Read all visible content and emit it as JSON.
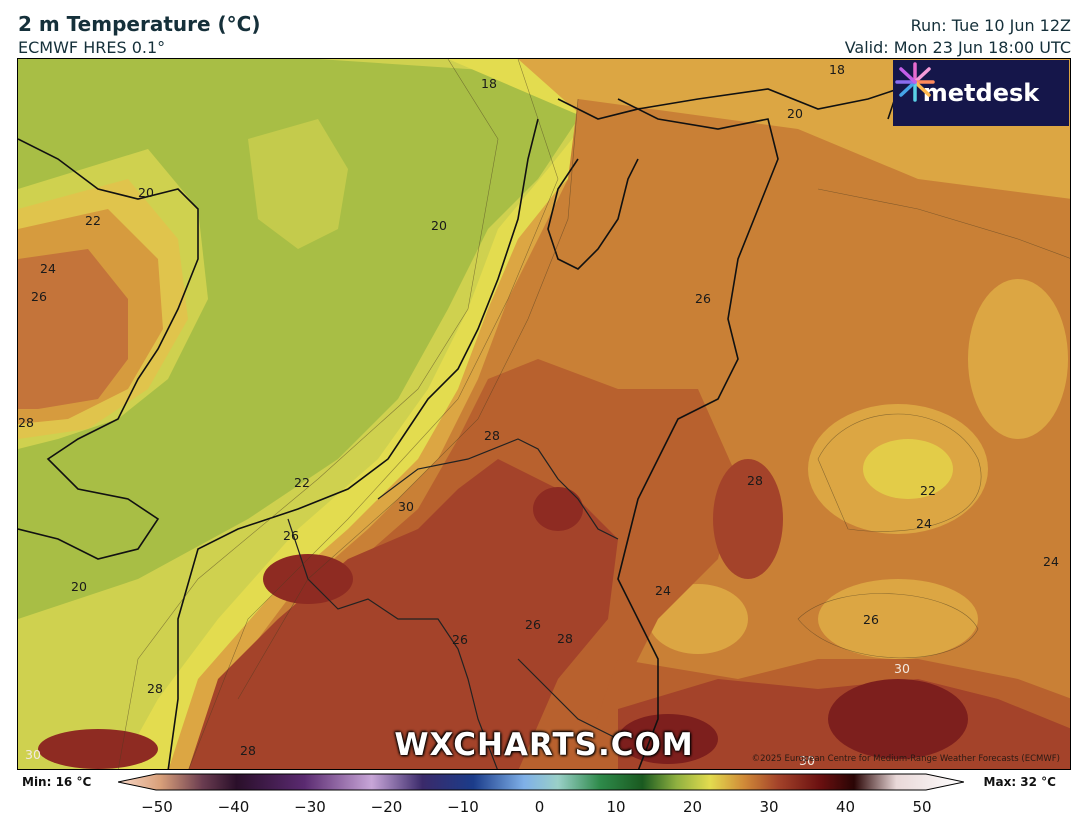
{
  "header": {
    "title": "2 m Temperature (°C)",
    "model": "ECMWF HRES 0.1°",
    "run": "Run: Tue 10 Jun 12Z",
    "valid": "Valid: Mon 23 Jun 18:00 UTC"
  },
  "logo": {
    "text": "metdesk",
    "icon": "asterisk-burst-icon"
  },
  "watermark": "WXCHARTS.COM",
  "copyright": "©2025 European Centre for Medium-Range Weather Forecasts (ECMWF)",
  "colorbar": {
    "min_label": "Min: 16 °C",
    "max_label": "Max: 32 °C",
    "ticks": [
      "−50",
      "−40",
      "−30",
      "−20",
      "−10",
      "0",
      "10",
      "20",
      "30",
      "40",
      "50"
    ]
  },
  "contour_labels": [
    {
      "text": "18"
    },
    {
      "text": "18"
    },
    {
      "text": "20"
    },
    {
      "text": "20"
    },
    {
      "text": "22"
    },
    {
      "text": "20"
    },
    {
      "text": "24"
    },
    {
      "text": "26"
    },
    {
      "text": "26"
    },
    {
      "text": "28"
    },
    {
      "text": "28"
    },
    {
      "text": "30"
    },
    {
      "text": "22"
    },
    {
      "text": "28"
    },
    {
      "text": "22"
    },
    {
      "text": "24"
    },
    {
      "text": "26"
    },
    {
      "text": "24"
    },
    {
      "text": "20"
    },
    {
      "text": "24"
    },
    {
      "text": "26"
    },
    {
      "text": "26"
    },
    {
      "text": "28"
    },
    {
      "text": "26"
    },
    {
      "text": "28"
    },
    {
      "text": "30"
    },
    {
      "text": "28"
    },
    {
      "text": "30"
    },
    {
      "text": "30"
    }
  ]
}
